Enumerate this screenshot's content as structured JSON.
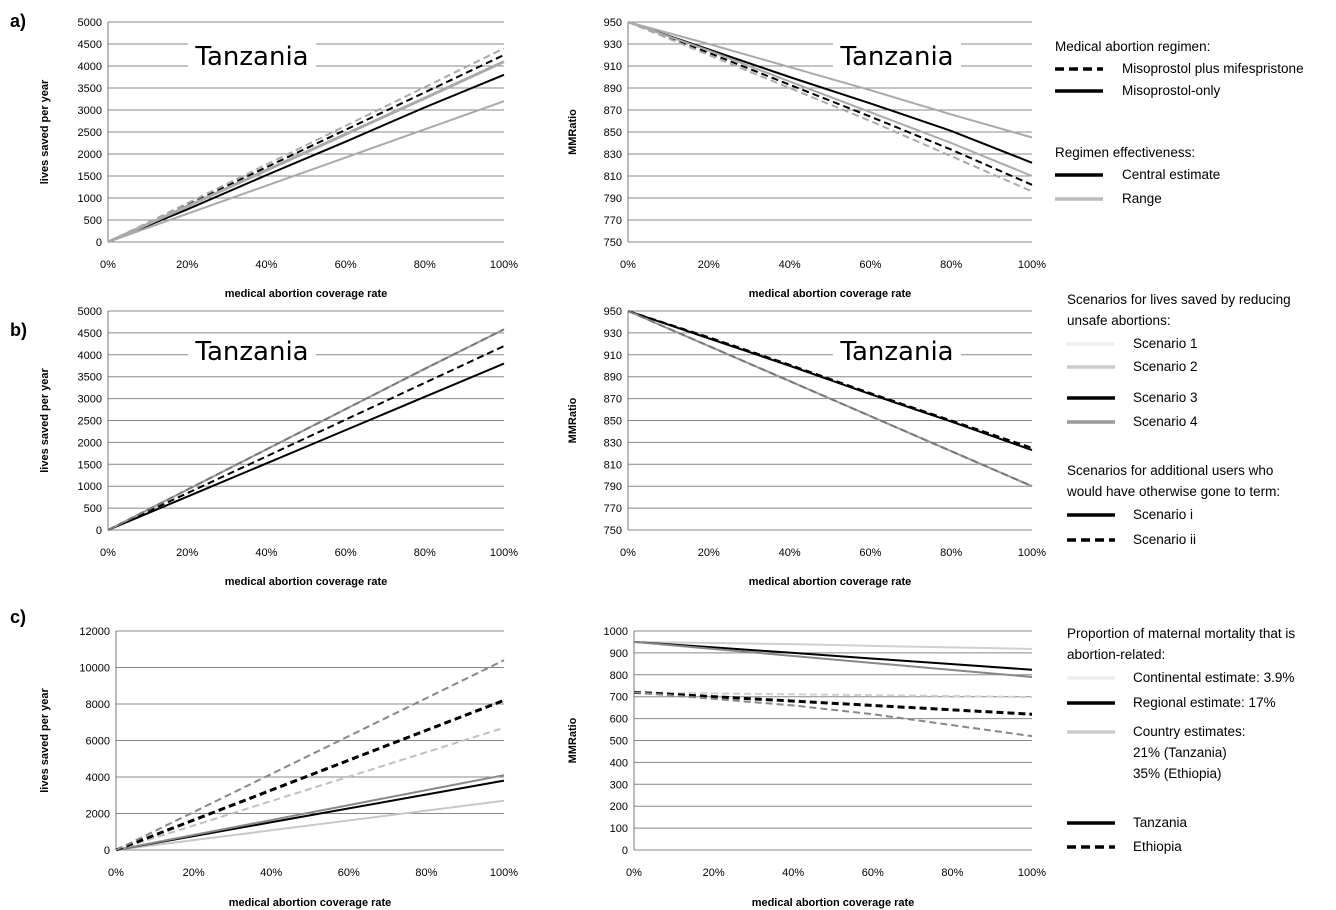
{
  "chart_data": [
    {
      "id": "a_left",
      "panel": "a)",
      "type": "line",
      "title": "Tanzania",
      "xlabel": "medical abortion coverage rate",
      "ylabel": "lives saved per year",
      "xlim": [
        0,
        100
      ],
      "ylim": [
        0,
        5000
      ],
      "ystep": 500,
      "x": [
        0,
        20,
        40,
        60,
        80,
        100
      ],
      "series": [
        {
          "values": [
            0,
            740,
            1520,
            2280,
            3060,
            3800
          ],
          "color": "#000000",
          "dash": false
        },
        {
          "values": [
            0,
            850,
            1700,
            2550,
            3400,
            4250
          ],
          "color": "#000000",
          "dash": true
        },
        {
          "values": [
            0,
            880,
            1760,
            2640,
            3520,
            4400
          ],
          "color": "#aaaaaa",
          "dash": true
        },
        {
          "values": [
            0,
            810,
            1630,
            2450,
            3270,
            4100
          ],
          "color": "#aaaaaa",
          "dash": false,
          "width": 3
        },
        {
          "values": [
            0,
            640,
            1280,
            1920,
            2560,
            3200
          ],
          "color": "#aaaaaa",
          "dash": false
        }
      ]
    },
    {
      "id": "a_right",
      "panel": "",
      "type": "line",
      "title": "Tanzania",
      "xlabel": "medical abortion coverage rate",
      "ylabel": "MMRatio",
      "xlim": [
        0,
        100
      ],
      "ylim": [
        750,
        950
      ],
      "ystep": 20,
      "x": [
        0,
        20,
        40,
        60,
        80,
        100
      ],
      "series": [
        {
          "values": [
            950,
            925,
            900,
            876,
            851,
            822
          ],
          "color": "#000000",
          "dash": false
        },
        {
          "values": [
            950,
            922,
            893,
            864,
            834,
            802
          ],
          "color": "#000000",
          "dash": true
        },
        {
          "values": [
            950,
            920,
            890,
            860,
            828,
            796
          ],
          "color": "#aaaaaa",
          "dash": true
        },
        {
          "values": [
            950,
            924,
            896,
            868,
            840,
            810
          ],
          "color": "#aaaaaa",
          "dash": false
        },
        {
          "values": [
            950,
            930,
            909,
            888,
            866,
            845
          ],
          "color": "#aaaaaa",
          "dash": false
        }
      ]
    },
    {
      "id": "b_left",
      "panel": "b)",
      "type": "line",
      "title": "Tanzania",
      "xlabel": "medical abortion coverage rate",
      "ylabel": "lives saved per year",
      "xlim": [
        0,
        100
      ],
      "ylim": [
        0,
        5000
      ],
      "ystep": 500,
      "x": [
        0,
        20,
        40,
        60,
        80,
        100
      ],
      "series": [
        {
          "values": [
            0,
            760,
            1520,
            2280,
            3040,
            3800
          ],
          "color": "#000000",
          "dash": false
        },
        {
          "values": [
            0,
            840,
            1680,
            2520,
            3360,
            4200
          ],
          "color": "#000000",
          "dash": true
        },
        {
          "values": [
            0,
            920,
            1840,
            2760,
            3680,
            4580
          ],
          "color": "#999999",
          "dash": false
        },
        {
          "values": [
            0,
            920,
            1840,
            2760,
            3680,
            4580
          ],
          "color": "#777777",
          "dash": true
        }
      ]
    },
    {
      "id": "b_right",
      "panel": "",
      "type": "line",
      "title": "Tanzania",
      "xlabel": "medical abortion coverage rate",
      "ylabel": "MMRatio",
      "xlim": [
        0,
        100
      ],
      "ylim": [
        750,
        950
      ],
      "ystep": 20,
      "x": [
        0,
        20,
        40,
        60,
        80,
        100
      ],
      "series": [
        {
          "values": [
            950,
            925,
            900,
            874,
            849,
            823
          ],
          "color": "#000000",
          "dash": false
        },
        {
          "values": [
            950,
            926,
            901,
            875,
            850,
            825
          ],
          "color": "#000000",
          "dash": true
        },
        {
          "values": [
            950,
            918,
            886,
            854,
            822,
            790
          ],
          "color": "#999999",
          "dash": false
        },
        {
          "values": [
            950,
            918,
            886,
            854,
            822,
            790
          ],
          "color": "#777777",
          "dash": true
        }
      ]
    },
    {
      "id": "c_left",
      "panel": "c)",
      "type": "line",
      "title": "",
      "xlabel": "medical abortion coverage rate",
      "ylabel": "lives saved per year",
      "xlim": [
        0,
        100
      ],
      "ylim": [
        0,
        12000
      ],
      "ystep": 2000,
      "x": [
        0,
        20,
        40,
        60,
        80,
        100
      ],
      "series": [
        {
          "values": [
            0,
            540,
            1080,
            1620,
            2160,
            2700
          ],
          "color": "#c8c8c8",
          "dash": false
        },
        {
          "values": [
            0,
            760,
            1520,
            2280,
            3040,
            3800
          ],
          "color": "#000000",
          "dash": false
        },
        {
          "values": [
            0,
            820,
            1640,
            2460,
            3280,
            4100
          ],
          "color": "#888888",
          "dash": false
        },
        {
          "values": [
            0,
            1340,
            2680,
            4020,
            5360,
            6700
          ],
          "color": "#c0c0c0",
          "dash": true
        },
        {
          "values": [
            0,
            1640,
            3280,
            4920,
            6560,
            8200
          ],
          "color": "#000000",
          "dash": true,
          "width": 3
        },
        {
          "values": [
            0,
            2080,
            4160,
            6240,
            8320,
            10400
          ],
          "color": "#888888",
          "dash": true
        }
      ]
    },
    {
      "id": "c_right",
      "panel": "",
      "type": "line",
      "title": "",
      "xlabel": "medical abortion coverage rate",
      "ylabel": "MMRatio",
      "xlim": [
        0,
        100
      ],
      "ylim": [
        0,
        1000
      ],
      "ystep": 100,
      "x": [
        0,
        20,
        40,
        60,
        80,
        100
      ],
      "series": [
        {
          "values": [
            950,
            945,
            940,
            932,
            925,
            918
          ],
          "color": "#d0d0d0",
          "dash": false
        },
        {
          "values": [
            950,
            925,
            900,
            874,
            849,
            823
          ],
          "color": "#000000",
          "dash": false
        },
        {
          "values": [
            950,
            918,
            886,
            854,
            822,
            790
          ],
          "color": "#888888",
          "dash": false
        },
        {
          "values": [
            720,
            715,
            711,
            707,
            703,
            698
          ],
          "color": "#d0d0d0",
          "dash": true
        },
        {
          "values": [
            720,
            700,
            680,
            660,
            640,
            620
          ],
          "color": "#000000",
          "dash": true,
          "width": 3
        },
        {
          "values": [
            720,
            690,
            660,
            620,
            570,
            520
          ],
          "color": "#888888",
          "dash": true
        }
      ]
    }
  ],
  "legends": [
    {
      "id": "legend_a",
      "groups": [
        {
          "title_lines": [
            "Medical abortion regimen:"
          ],
          "items": [
            {
              "label_lines": [
                "Misoprostol plus mifespristone"
              ],
              "color": "#000000",
              "dash": true
            },
            {
              "label_lines": [
                "Misoprostol-only"
              ],
              "color": "#000000",
              "dash": false
            }
          ]
        },
        {
          "title_lines": [
            "Regimen effectiveness:"
          ],
          "items": [
            {
              "label_lines": [
                "Central estimate"
              ],
              "color": "#000000",
              "dash": false
            },
            {
              "label_lines": [
                "Range"
              ],
              "color": "#bbbbbb",
              "dash": false
            }
          ]
        }
      ]
    },
    {
      "id": "legend_b",
      "groups": [
        {
          "title_lines": [
            "Scenarios for lives saved by reducing",
            "unsafe abortions:"
          ],
          "items": [
            {
              "label_lines": [
                "Scenario 1"
              ],
              "color": "#eeeeee",
              "dash": false
            },
            {
              "label_lines": [
                "Scenario 2"
              ],
              "color": "#cccccc",
              "dash": false
            },
            {
              "label_lines": [
                "Scenario 3"
              ],
              "color": "#000000",
              "dash": false
            },
            {
              "label_lines": [
                "Scenario 4"
              ],
              "color": "#999999",
              "dash": false
            }
          ]
        },
        {
          "title_lines": [
            "Scenarios for additional users who",
            "would have otherwise gone to term:"
          ],
          "items": [
            {
              "label_lines": [
                "Scenario i"
              ],
              "color": "#000000",
              "dash": false
            },
            {
              "label_lines": [
                "Scenario ii"
              ],
              "color": "#000000",
              "dash": true
            }
          ]
        }
      ]
    },
    {
      "id": "legend_c",
      "groups": [
        {
          "title_lines": [
            "Proportion of maternal mortality that is",
            "abortion-related:"
          ],
          "items": [
            {
              "label_lines": [
                "Continental estimate: 3.9%"
              ],
              "color": "#eeeeee",
              "dash": false
            },
            {
              "label_lines": [
                "Regional estimate: 17%"
              ],
              "color": "#000000",
              "dash": false
            },
            {
              "label_lines": [
                "Country estimates:",
                "21% (Tanzania)",
                "35% (Ethiopia)"
              ],
              "color": "#cccccc",
              "dash": false
            },
            {
              "label_lines": [
                "Tanzania"
              ],
              "color": "#000000",
              "dash": false
            },
            {
              "label_lines": [
                "Ethiopia"
              ],
              "color": "#000000",
              "dash": true
            }
          ]
        }
      ]
    }
  ],
  "x_tick_labels": [
    "0%",
    "20%",
    "40%",
    "60%",
    "80%",
    "100%"
  ]
}
